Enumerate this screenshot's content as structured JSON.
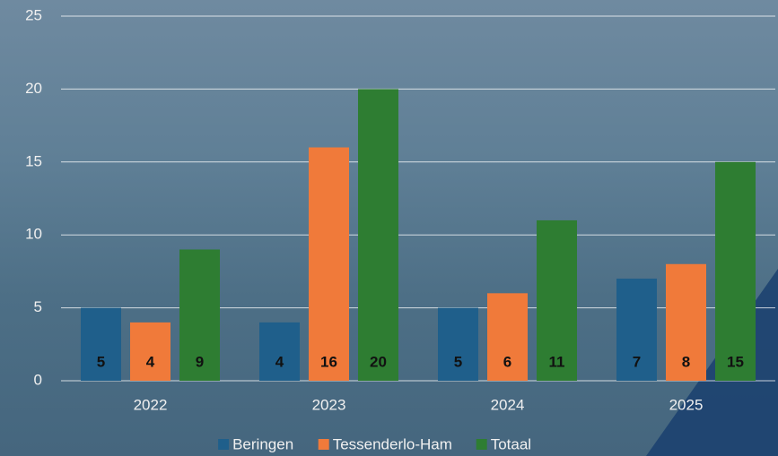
{
  "chart_data": {
    "type": "bar",
    "categories": [
      "2022",
      "2023",
      "2024",
      "2025"
    ],
    "series": [
      {
        "name": "Beringen",
        "color": "#1f5f8b",
        "values": [
          5,
          4,
          5,
          7
        ]
      },
      {
        "name": "Tessenderlo-Ham",
        "color": "#f07a3a",
        "values": [
          4,
          16,
          6,
          8
        ]
      },
      {
        "name": "Totaal",
        "color": "#2e7d32",
        "values": [
          9,
          20,
          11,
          15
        ]
      }
    ],
    "ylim": [
      0,
      25
    ],
    "yticks": [
      0,
      5,
      10,
      15,
      20,
      25
    ],
    "grid": true,
    "legend": "bottom"
  }
}
